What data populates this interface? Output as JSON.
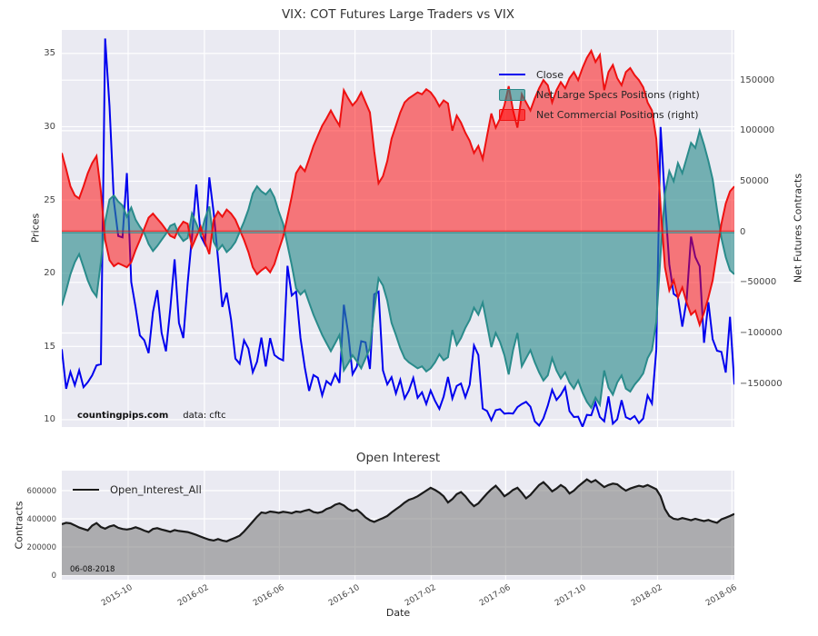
{
  "colors": {
    "figure_bg": "#ffffff",
    "axes_bg": "#eaeaf2",
    "grid": "#ffffff",
    "close_line": "#0000ee",
    "specs_line": "#2a8b8b",
    "specs_fill": "rgba(42,139,139,0.62)",
    "commercial_line": "#ee1111",
    "commercial_fill": "rgba(255,0,0,0.5)",
    "oi_line": "#1a1a1a",
    "oi_fill": "rgba(120,120,120,0.55)"
  },
  "annotations": {
    "watermark": "countingpips.com",
    "source": "data: cftc",
    "date_note": "06-08-2018"
  },
  "x_axis": {
    "tick_labels": [
      "2015-10",
      "2016-02",
      "2016-06",
      "2016-10",
      "2017-02",
      "2017-06",
      "2017-10",
      "2018-02",
      "2018-06"
    ],
    "tick_positions": [
      15.29,
      32.86,
      50.14,
      67.57,
      85.14,
      102.29,
      119.71,
      137.29,
      154.43
    ],
    "n_points": 156
  },
  "chart_data": [
    {
      "type": "line+area",
      "title": "VIX: COT Futures Large Traders vs VIX",
      "x_start": "2015-06",
      "x_end": "2018-06",
      "x_freq": "weekly",
      "ylabel_left": "Prices",
      "ylabel_right": "Net Futures Contracts",
      "ylim_left": [
        9.5,
        36.6
      ],
      "ylim_right": [
        -193000,
        199600
      ],
      "yticks_left": [
        35,
        30,
        25,
        20,
        15,
        10
      ],
      "yticks_left_labels": [
        "35",
        "30",
        "25",
        "20",
        "15",
        "10"
      ],
      "yticks_right": [
        150000,
        100000,
        50000,
        0,
        -50000,
        -100000,
        -150000
      ],
      "yticks_right_labels": [
        "150000",
        "100000",
        "50000",
        "0",
        "−50000",
        "−100000",
        "−150000"
      ],
      "grid": true,
      "legend_position": "upper right",
      "series": [
        {
          "name": "Close",
          "axis": "left",
          "style": "line",
          "scale": 1,
          "values": [
            14.81,
            12.11,
            13.26,
            12.35,
            13.37,
            12.22,
            12.56,
            13.02,
            13.71,
            13.79,
            36.02,
            31.4,
            24.9,
            22.54,
            22.44,
            26.83,
            19.4,
            17.67,
            15.75,
            15.43,
            14.54,
            17.35,
            18.84,
            15.93,
            14.67,
            17.6,
            20.95,
            16.6,
            15.57,
            19.34,
            22.47,
            26.05,
            22.55,
            21.98,
            26.54,
            24.11,
            20.98,
            17.7,
            18.67,
            16.84,
            14.17,
            13.82,
            15.42,
            14.85,
            13.24,
            13.96,
            15.6,
            13.63,
            15.57,
            14.42,
            14.19,
            14.05,
            20.5,
            18.48,
            18.75,
            15.58,
            13.55,
            11.97,
            13.05,
            12.86,
            11.66,
            12.64,
            12.38,
            13.12,
            12.51,
            17.85,
            15.92,
            13.1,
            13.63,
            15.36,
            15.28,
            13.46,
            18.56,
            18.74,
            13.37,
            12.41,
            12.9,
            11.79,
            12.72,
            11.45,
            11.99,
            12.85,
            11.49,
            11.87,
            11.07,
            11.99,
            11.29,
            10.74,
            11.57,
            12.92,
            11.45,
            12.3,
            12.47,
            11.53,
            12.39,
            15.07,
            14.42,
            10.76,
            10.59,
            9.96,
            10.65,
            10.72,
            10.41,
            10.45,
            10.42,
            10.86,
            11.07,
            11.22,
            10.89,
            9.89,
            9.6,
            10.09,
            10.96,
            12.04,
            11.35,
            11.7,
            12.23,
            10.58,
            10.18,
            10.21,
            9.51,
            10.33,
            10.3,
            11.16,
            10.18,
            9.89,
            11.59,
            9.73,
            10.03,
            11.33,
            10.17,
            10.03,
            10.25,
            9.77,
            10.08,
            11.66,
            11.1,
            14.79,
            29.98,
            24.97,
            20.6,
            18.59,
            18.36,
            16.35,
            18.2,
            22.5,
            21.1,
            20.47,
            15.25,
            18.02,
            15.49,
            14.71,
            14.63,
            13.22,
            17.02,
            12.4
          ]
        },
        {
          "name": "Net Large Specs Positions (right)",
          "axis": "right",
          "style": "area",
          "scale": 1000,
          "values": [
            -73,
            -58,
            -42,
            -30,
            -22,
            -35,
            -48,
            -58,
            -64,
            -30,
            10,
            32,
            36,
            30,
            26,
            15,
            24,
            12,
            5,
            -1,
            -12,
            -19,
            -14,
            -8,
            -2,
            6,
            8,
            -3,
            -9,
            -6,
            18,
            8,
            -3,
            13,
            25,
            -10,
            -18,
            -13,
            -20,
            -16,
            -10,
            0,
            10,
            22,
            38,
            45,
            40,
            37,
            42,
            34,
            20,
            8,
            -13,
            -33,
            -56,
            -62,
            -58,
            -70,
            -82,
            -92,
            -102,
            -110,
            -118,
            -110,
            -102,
            -137,
            -130,
            -122,
            -128,
            -135,
            -125,
            -115,
            -78,
            -46,
            -53,
            -68,
            -90,
            -102,
            -115,
            -125,
            -129,
            -132,
            -135,
            -133,
            -138,
            -135,
            -129,
            -121,
            -127,
            -124,
            -97,
            -112,
            -105,
            -95,
            -87,
            -75,
            -82,
            -70,
            -92,
            -114,
            -100,
            -109,
            -122,
            -141,
            -117,
            -100,
            -133,
            -125,
            -117,
            -129,
            -139,
            -147,
            -142,
            -125,
            -137,
            -145,
            -139,
            -149,
            -155,
            -147,
            -159,
            -168,
            -174,
            -164,
            -171,
            -137,
            -154,
            -161,
            -149,
            -142,
            -155,
            -158,
            -151,
            -146,
            -140,
            -125,
            -117,
            -89,
            -22,
            38,
            60,
            50,
            68,
            58,
            73,
            88,
            83,
            100,
            86,
            70,
            52,
            22,
            -6,
            -25,
            -38,
            -42
          ]
        },
        {
          "name": "Net Commercial Positions (right)",
          "axis": "right",
          "style": "area",
          "scale": 1000,
          "values": [
            78,
            62,
            45,
            36,
            33,
            45,
            58,
            68,
            75,
            40,
            -8,
            -28,
            -34,
            -31,
            -33,
            -35,
            -30,
            -18,
            -8,
            3,
            14,
            18,
            13,
            8,
            2,
            -4,
            -6,
            4,
            10,
            8,
            -15,
            -5,
            5,
            -10,
            -22,
            12,
            20,
            15,
            22,
            18,
            12,
            2,
            -8,
            -20,
            -35,
            -42,
            -38,
            -35,
            -40,
            -32,
            -18,
            -5,
            15,
            35,
            58,
            65,
            60,
            72,
            85,
            95,
            105,
            112,
            120,
            112,
            105,
            140,
            132,
            125,
            130,
            138,
            128,
            118,
            80,
            48,
            55,
            70,
            92,
            105,
            118,
            128,
            132,
            135,
            138,
            136,
            141,
            138,
            132,
            124,
            130,
            127,
            100,
            115,
            108,
            98,
            90,
            78,
            85,
            72,
            95,
            117,
            103,
            112,
            125,
            144,
            120,
            103,
            136,
            128,
            120,
            132,
            142,
            150,
            145,
            128,
            140,
            148,
            142,
            152,
            158,
            150,
            162,
            172,
            179,
            168,
            175,
            140,
            158,
            165,
            152,
            145,
            158,
            162,
            155,
            150,
            143,
            128,
            120,
            92,
            25,
            -35,
            -58,
            -48,
            -65,
            -55,
            -70,
            -82,
            -78,
            -92,
            -80,
            -65,
            -48,
            -20,
            8,
            28,
            40,
            45
          ]
        }
      ]
    },
    {
      "type": "area",
      "title": "Open Interest",
      "xlabel": "Date",
      "ylabel": "Contracts",
      "ylim": [
        -32000,
        742000
      ],
      "yticks": [
        600000,
        400000,
        200000,
        0
      ],
      "yticks_labels": [
        "600000",
        "400000",
        "200000",
        "0"
      ],
      "grid": true,
      "legend_position": "upper left",
      "series": [
        {
          "name": "Open_Interest_All",
          "style": "area",
          "scale": 1000,
          "values": [
            362,
            372,
            368,
            354,
            338,
            328,
            318,
            352,
            370,
            342,
            330,
            346,
            354,
            336,
            328,
            324,
            330,
            340,
            330,
            316,
            306,
            328,
            334,
            324,
            316,
            308,
            320,
            314,
            310,
            306,
            296,
            286,
            274,
            262,
            252,
            246,
            256,
            246,
            240,
            254,
            266,
            280,
            310,
            345,
            380,
            415,
            445,
            440,
            452,
            448,
            442,
            450,
            446,
            440,
            452,
            448,
            458,
            465,
            448,
            442,
            450,
            470,
            480,
            500,
            510,
            495,
            470,
            455,
            465,
            440,
            410,
            390,
            378,
            392,
            405,
            420,
            445,
            468,
            490,
            515,
            535,
            545,
            560,
            580,
            600,
            620,
            605,
            585,
            560,
            516,
            540,
            575,
            590,
            560,
            520,
            490,
            510,
            545,
            580,
            610,
            635,
            600,
            560,
            580,
            605,
            620,
            585,
            545,
            570,
            605,
            640,
            660,
            630,
            595,
            615,
            640,
            620,
            580,
            600,
            630,
            655,
            680,
            660,
            675,
            650,
            625,
            640,
            650,
            645,
            620,
            600,
            615,
            625,
            635,
            628,
            640,
            625,
            610,
            560,
            470,
            420,
            400,
            395,
            405,
            398,
            390,
            400,
            392,
            384,
            392,
            380,
            372,
            396,
            408,
            420,
            435
          ]
        }
      ]
    }
  ]
}
